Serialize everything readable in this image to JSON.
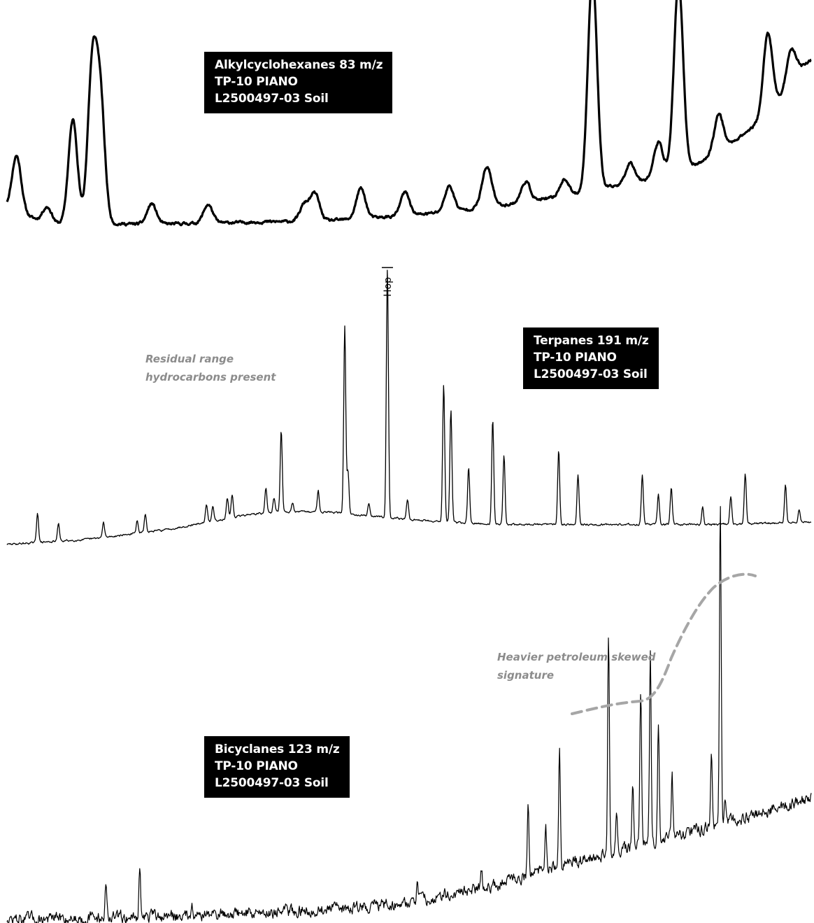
{
  "chart_data": [
    {
      "type": "line",
      "title_lines": [
        "Alkylcyclohexanes 83 m/z",
        "TP-10 PIANO",
        "L2500497-03 Soil"
      ],
      "annotations": [],
      "baseline": [
        [
          0,
          0.1
        ],
        [
          0.05,
          0.0
        ],
        [
          0.2,
          0.0
        ],
        [
          0.4,
          0.02
        ],
        [
          0.5,
          0.05
        ],
        [
          0.6,
          0.1
        ],
        [
          0.7,
          0.17
        ],
        [
          0.8,
          0.27
        ],
        [
          0.86,
          0.36
        ],
        [
          0.9,
          0.48
        ],
        [
          0.94,
          0.62
        ],
        [
          0.97,
          0.8
        ],
        [
          0.985,
          0.92
        ],
        [
          1.0,
          0.98
        ]
      ],
      "peaks": [
        {
          "x": 0.012,
          "h": 0.33
        },
        {
          "x": 0.05,
          "h": 0.1
        },
        {
          "x": 0.082,
          "h": 0.62
        },
        {
          "x": 0.106,
          "h": 0.9
        },
        {
          "x": 0.116,
          "h": 0.72
        },
        {
          "x": 0.18,
          "h": 0.12
        },
        {
          "x": 0.25,
          "h": 0.11
        },
        {
          "x": 0.37,
          "h": 0.1
        },
        {
          "x": 0.383,
          "h": 0.16
        },
        {
          "x": 0.44,
          "h": 0.18
        },
        {
          "x": 0.495,
          "h": 0.14
        },
        {
          "x": 0.55,
          "h": 0.15
        },
        {
          "x": 0.595,
          "h": 0.16
        },
        {
          "x": 0.6,
          "h": 0.1
        },
        {
          "x": 0.645,
          "h": 0.12
        },
        {
          "x": 0.693,
          "h": 0.1
        },
        {
          "x": 0.728,
          "h": 1.3
        },
        {
          "x": 0.775,
          "h": 0.12
        },
        {
          "x": 0.81,
          "h": 0.2
        },
        {
          "x": 0.835,
          "h": 1.12
        },
        {
          "x": 0.885,
          "h": 0.22
        },
        {
          "x": 0.946,
          "h": 0.48
        },
        {
          "x": 0.975,
          "h": 0.2
        }
      ]
    },
    {
      "type": "line",
      "title_lines": [
        "Terpanes 191 m/z",
        "TP-10 PIANO",
        "L2500497-03 Soil"
      ],
      "annotations": [
        {
          "text_lines": [
            "Residual range",
            "hydrocarbons present"
          ]
        }
      ],
      "peak_labels": [
        {
          "text": "Hop",
          "x": 0.473
        }
      ],
      "baseline": [
        [
          0,
          0.0
        ],
        [
          0.1,
          0.02
        ],
        [
          0.2,
          0.06
        ],
        [
          0.3,
          0.12
        ],
        [
          0.34,
          0.13
        ],
        [
          0.4,
          0.13
        ],
        [
          0.5,
          0.1
        ],
        [
          0.6,
          0.08
        ],
        [
          0.7,
          0.08
        ],
        [
          0.8,
          0.08
        ],
        [
          0.9,
          0.08
        ],
        [
          1.0,
          0.09
        ]
      ],
      "peaks": [
        {
          "x": 0.038,
          "h": 0.12
        },
        {
          "x": 0.064,
          "h": 0.07
        },
        {
          "x": 0.12,
          "h": 0.06
        },
        {
          "x": 0.162,
          "h": 0.05
        },
        {
          "x": 0.172,
          "h": 0.07
        },
        {
          "x": 0.248,
          "h": 0.07
        },
        {
          "x": 0.256,
          "h": 0.06
        },
        {
          "x": 0.274,
          "h": 0.08
        },
        {
          "x": 0.28,
          "h": 0.09
        },
        {
          "x": 0.322,
          "h": 0.1
        },
        {
          "x": 0.332,
          "h": 0.06
        },
        {
          "x": 0.341,
          "h": 0.33
        },
        {
          "x": 0.355,
          "h": 0.04
        },
        {
          "x": 0.387,
          "h": 0.09
        },
        {
          "x": 0.42,
          "h": 0.75
        },
        {
          "x": 0.424,
          "h": 0.17
        },
        {
          "x": 0.45,
          "h": 0.05
        },
        {
          "x": 0.473,
          "h": 1.0
        },
        {
          "x": 0.498,
          "h": 0.08
        },
        {
          "x": 0.543,
          "h": 0.55
        },
        {
          "x": 0.552,
          "h": 0.45
        },
        {
          "x": 0.574,
          "h": 0.22
        },
        {
          "x": 0.604,
          "h": 0.42
        },
        {
          "x": 0.618,
          "h": 0.28
        },
        {
          "x": 0.686,
          "h": 0.3
        },
        {
          "x": 0.71,
          "h": 0.2
        },
        {
          "x": 0.79,
          "h": 0.2
        },
        {
          "x": 0.81,
          "h": 0.12
        },
        {
          "x": 0.826,
          "h": 0.15
        },
        {
          "x": 0.865,
          "h": 0.07
        },
        {
          "x": 0.9,
          "h": 0.11
        },
        {
          "x": 0.918,
          "h": 0.2
        },
        {
          "x": 0.968,
          "h": 0.15
        },
        {
          "x": 0.985,
          "h": 0.05
        }
      ]
    },
    {
      "type": "line",
      "title_lines": [
        "Bicyclanes 123 m/z",
        "TP-10 PIANO",
        "L2500497-03 Soil"
      ],
      "annotations": [
        {
          "text_lines": [
            "Heavier petroleum skewed",
            "signature"
          ]
        }
      ],
      "baseline": [
        [
          0,
          0.0
        ],
        [
          0.2,
          0.01
        ],
        [
          0.4,
          0.03
        ],
        [
          0.5,
          0.05
        ],
        [
          0.6,
          0.1
        ],
        [
          0.7,
          0.17
        ],
        [
          0.8,
          0.23
        ],
        [
          0.9,
          0.29
        ],
        [
          1.0,
          0.36
        ]
      ],
      "peaks": [
        {
          "x": 0.123,
          "h": 0.1
        },
        {
          "x": 0.165,
          "h": 0.14
        },
        {
          "x": 0.23,
          "h": 0.05
        },
        {
          "x": 0.51,
          "h": 0.05
        },
        {
          "x": 0.59,
          "h": 0.06
        },
        {
          "x": 0.648,
          "h": 0.2
        },
        {
          "x": 0.67,
          "h": 0.12
        },
        {
          "x": 0.687,
          "h": 0.35
        },
        {
          "x": 0.748,
          "h": 0.65
        },
        {
          "x": 0.758,
          "h": 0.1
        },
        {
          "x": 0.778,
          "h": 0.18
        },
        {
          "x": 0.788,
          "h": 0.45
        },
        {
          "x": 0.8,
          "h": 0.58
        },
        {
          "x": 0.81,
          "h": 0.35
        },
        {
          "x": 0.827,
          "h": 0.18
        },
        {
          "x": 0.876,
          "h": 0.23
        },
        {
          "x": 0.887,
          "h": 0.95
        },
        {
          "x": 0.893,
          "h": 0.08
        }
      ]
    }
  ]
}
